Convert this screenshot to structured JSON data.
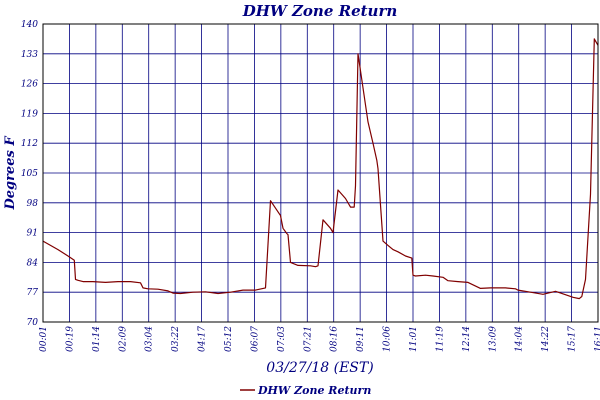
{
  "chart_data": {
    "type": "line",
    "title": "DHW Zone Return",
    "xlabel": "03/27/18 (EST)",
    "ylabel": "Degrees F",
    "ylim": [
      70,
      140
    ],
    "yticks": [
      70,
      77,
      84,
      91,
      98,
      105,
      112,
      119,
      126,
      133,
      140
    ],
    "xlim": [
      0,
      22.2
    ],
    "xtick_labels": [
      "00:01",
      "00:19",
      "01:14",
      "02:09",
      "03:04",
      "03:22",
      "04:17",
      "05:12",
      "06:07",
      "07:03",
      "07:21",
      "08:16",
      "09:11",
      "10:06",
      "11:01",
      "11:19",
      "12:14",
      "13:09",
      "14:04",
      "14:22",
      "15:17",
      "16:11"
    ],
    "grid": true,
    "legend": "bottom",
    "series": [
      {
        "name": "DHW Zone Return",
        "color": "#800000",
        "x": [
          0,
          0.3,
          0.6,
          1.0,
          1.25,
          1.3,
          1.4,
          1.6,
          2.0,
          2.5,
          3.0,
          3.5,
          3.9,
          4.0,
          4.2,
          4.6,
          5.0,
          5.2,
          5.5,
          6.0,
          6.5,
          7.0,
          7.5,
          8.0,
          8.5,
          8.9,
          9.1,
          9.5,
          9.6,
          9.75,
          9.8,
          9.9,
          10.2,
          10.7,
          10.9,
          11.0,
          11.2,
          11.5,
          11.6,
          11.8,
          12.1,
          12.3,
          12.45,
          12.5,
          12.6,
          12.7,
          12.9,
          13.0,
          13.2,
          13.35,
          13.4,
          13.6,
          13.8,
          14.0,
          14.2,
          14.5,
          14.75,
          14.8,
          14.9,
          15.3,
          15.6,
          16.0,
          16.2,
          16.6,
          17.0,
          17.5,
          17.9,
          18.0,
          18.5,
          18.9,
          19.0,
          19.5,
          20.0,
          20.5,
          21.0,
          21.2,
          21.45,
          21.55,
          21.7,
          21.9,
          22.05,
          22.2
        ],
        "values": [
          89,
          88,
          87,
          85.5,
          84.5,
          80,
          79.8,
          79.5,
          79.5,
          79.3,
          79.5,
          79.5,
          79.2,
          78,
          77.8,
          77.7,
          77.3,
          76.8,
          76.7,
          77,
          77.1,
          76.7,
          77,
          77.5,
          77.5,
          78,
          98.5,
          95,
          92,
          90.8,
          90.5,
          84,
          83.3,
          83.2,
          83,
          83.2,
          94,
          92,
          91,
          101,
          99,
          97,
          97,
          102,
          133,
          129,
          121,
          117,
          112,
          108,
          106,
          89,
          88,
          87,
          86.5,
          85.5,
          85,
          81,
          80.8,
          81,
          80.8,
          80.5,
          79.7,
          79.5,
          79.3,
          77.9,
          78,
          78,
          78,
          77.8,
          77.5,
          77,
          76.5,
          77.2,
          76.2,
          75.8,
          75.5,
          76,
          80,
          100,
          136.5,
          135
        ]
      }
    ]
  }
}
